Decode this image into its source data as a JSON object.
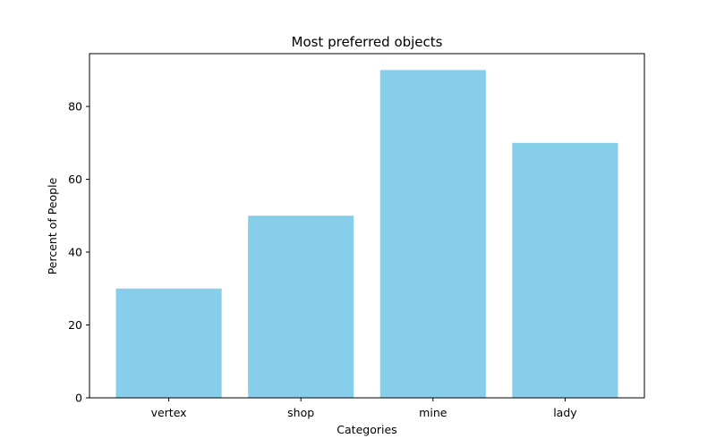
{
  "chart_data": {
    "type": "bar",
    "title": "Most preferred objects",
    "xlabel": "Categories",
    "ylabel": "Percent of People",
    "categories": [
      "vertex",
      "shop",
      "mine",
      "lady"
    ],
    "values": [
      30,
      50,
      90,
      70
    ],
    "ylim": [
      0,
      94.5
    ],
    "yticks": [
      0,
      20,
      40,
      60,
      80
    ],
    "grid": false,
    "legend": "none",
    "bar_color": "#87CEEB",
    "axis_color": "#000000"
  }
}
